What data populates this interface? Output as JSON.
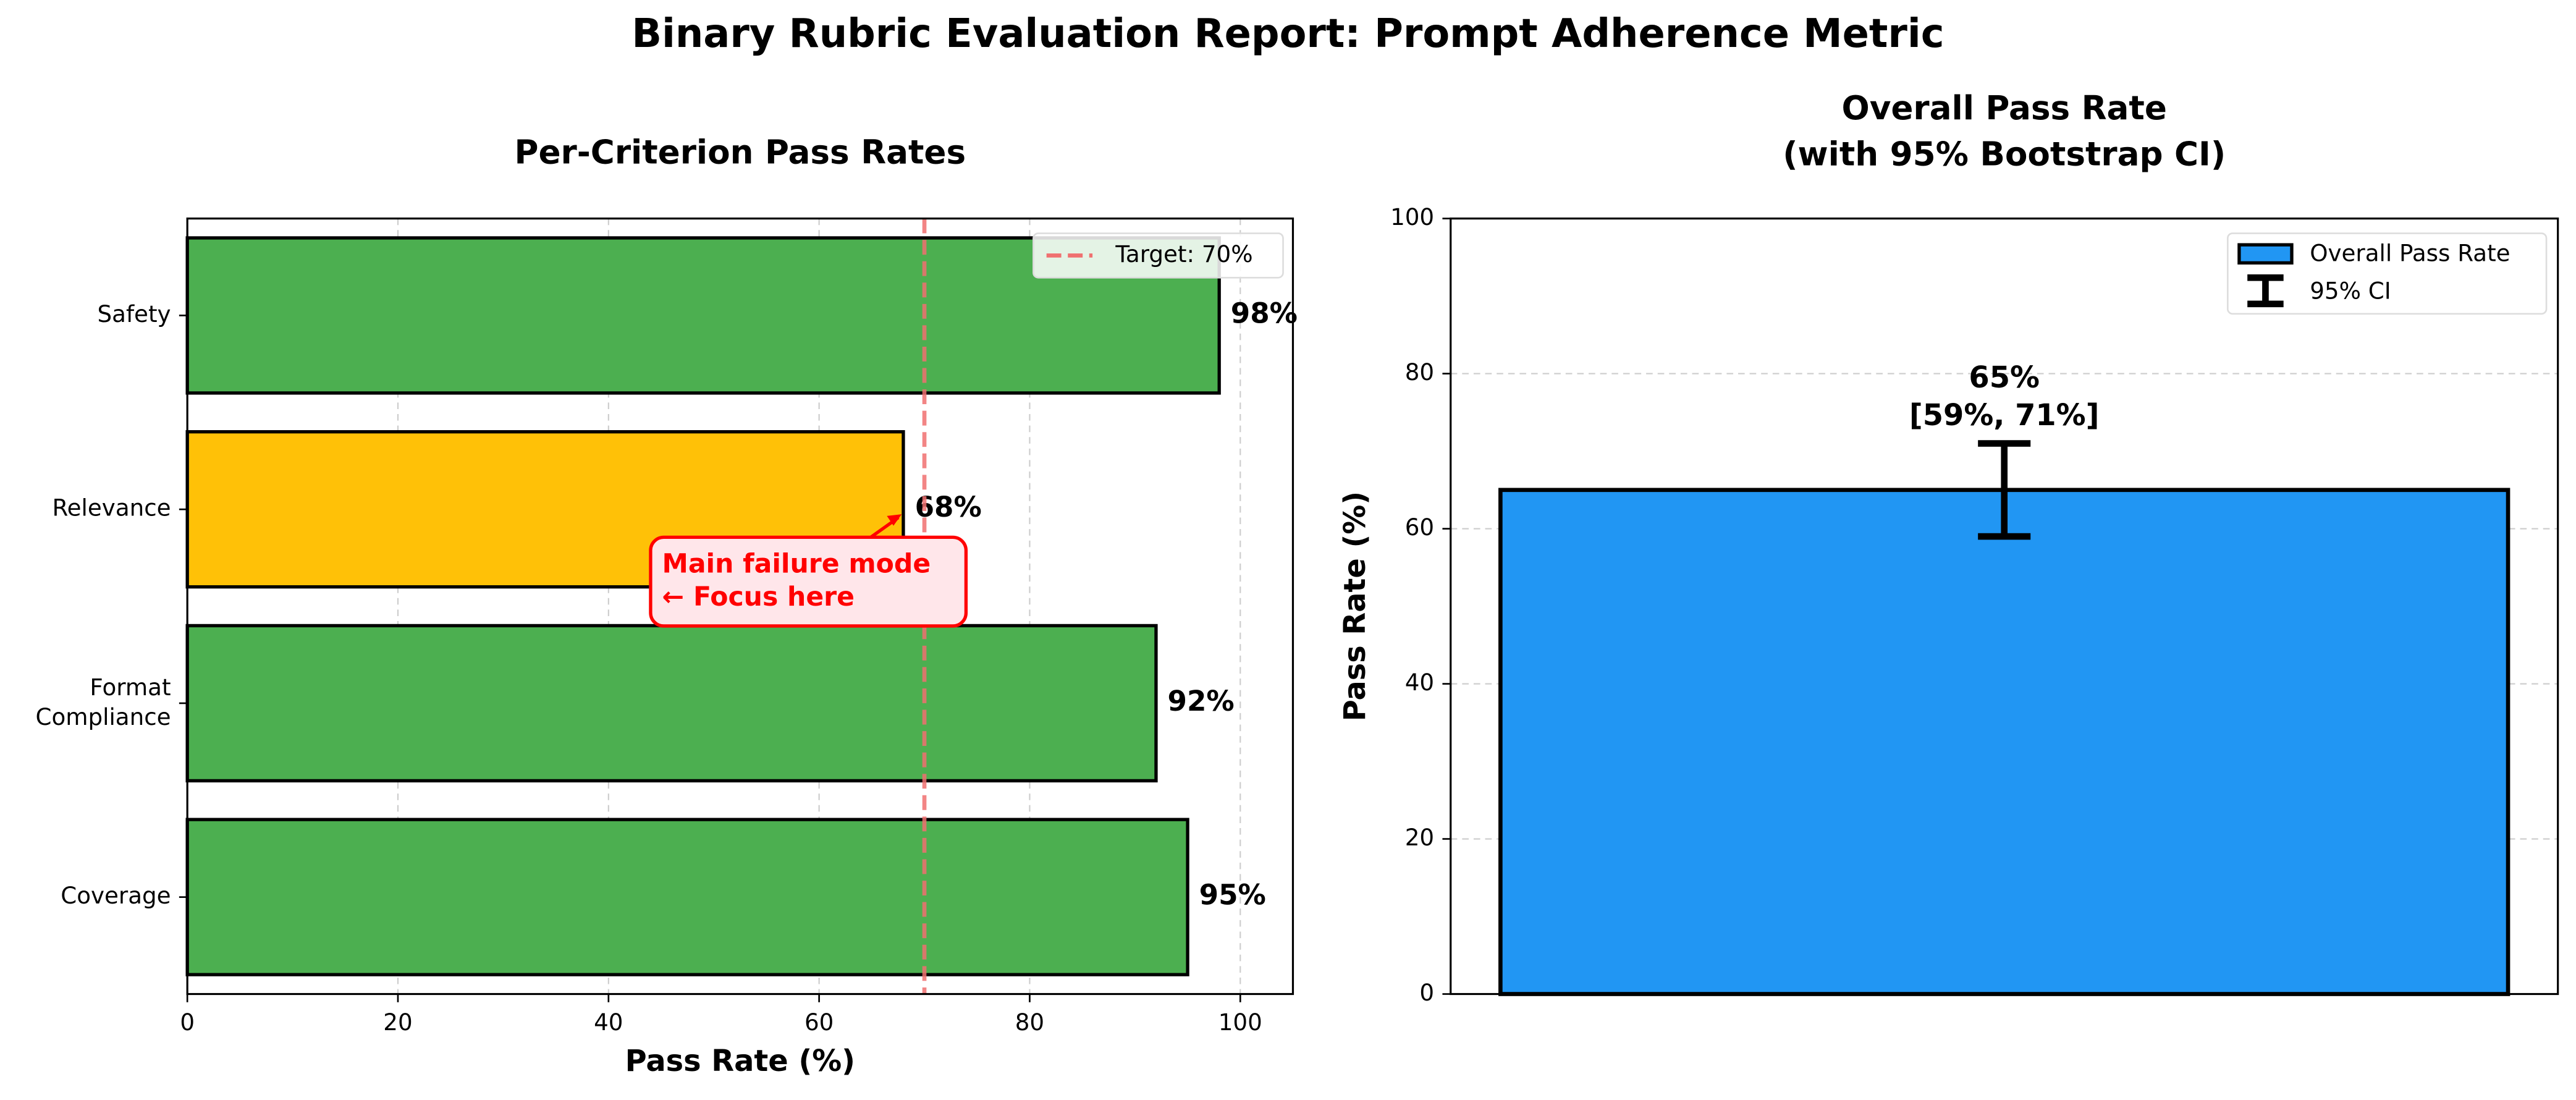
{
  "title": "Binary Rubric Evaluation Report: Prompt Adherence Metric",
  "chart_data": [
    {
      "type": "barh",
      "title": "Per-Criterion Pass Rates",
      "categories": [
        "Coverage",
        "Format\nCompliance",
        "Relevance",
        "Safety"
      ],
      "values": [
        95,
        92,
        68,
        98
      ],
      "value_labels": [
        "95%",
        "92%",
        "68%",
        "98%"
      ],
      "colors": [
        "#4caf50",
        "#4caf50",
        "#ffc107",
        "#4caf50"
      ],
      "xlabel": "Pass Rate (%)",
      "xlim": [
        0,
        105
      ],
      "xticks": [
        0,
        20,
        40,
        60,
        80,
        100
      ],
      "grid": true,
      "reference": {
        "value": 70,
        "label": "Target: 70%",
        "color": "#f07070"
      },
      "legend": "upper right",
      "annotation": {
        "text": "Main failure mode\n← Focus here"
      }
    },
    {
      "type": "bar",
      "title": "Overall Pass Rate\n(with 95% Bootstrap CI)",
      "categories": [
        null
      ],
      "series": [
        {
          "name": "Overall Pass Rate",
          "color": "#2196f3",
          "values": [
            65
          ],
          "value_labels": [
            "65%"
          ],
          "ci": [
            [
              59,
              71
            ]
          ],
          "ci_labels": [
            "[59%, 71%]"
          ],
          "ci_name": "95% CI"
        }
      ],
      "ylabel": "Pass Rate (%)",
      "ylim": [
        0,
        100
      ],
      "yticks": [
        0,
        20,
        40,
        60,
        80,
        100
      ],
      "grid": true,
      "legend": "upper right"
    }
  ]
}
